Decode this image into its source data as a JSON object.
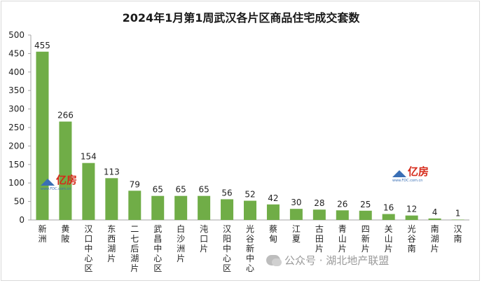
{
  "chart_data": {
    "type": "bar",
    "title": "2024年1月第1周武汉各片区商品住宅成交套数",
    "categories": [
      "新洲",
      "黄陂",
      "汉口中心区",
      "东西湖片",
      "二七后湖片",
      "武昌中心区",
      "白沙洲片",
      "沌口片",
      "汉阳中心区",
      "光谷新中心",
      "蔡甸",
      "江夏",
      "古田片",
      "青山片",
      "四新片",
      "关山片",
      "光谷南",
      "南湖片",
      "汉南"
    ],
    "values": [
      455,
      266,
      154,
      113,
      79,
      65,
      65,
      65,
      56,
      52,
      42,
      30,
      28,
      26,
      25,
      16,
      12,
      4,
      1
    ],
    "ylim": [
      0,
      500
    ],
    "yticks": [
      0,
      50,
      100,
      150,
      200,
      250,
      300,
      350,
      400,
      450,
      500
    ],
    "bar_color": "#70ad47",
    "grid": false,
    "legend": "none"
  },
  "logos": {
    "brand": "亿房",
    "url": "www.FDC.com.cn"
  },
  "watermark": "公众号 · 湖北地产联盟"
}
